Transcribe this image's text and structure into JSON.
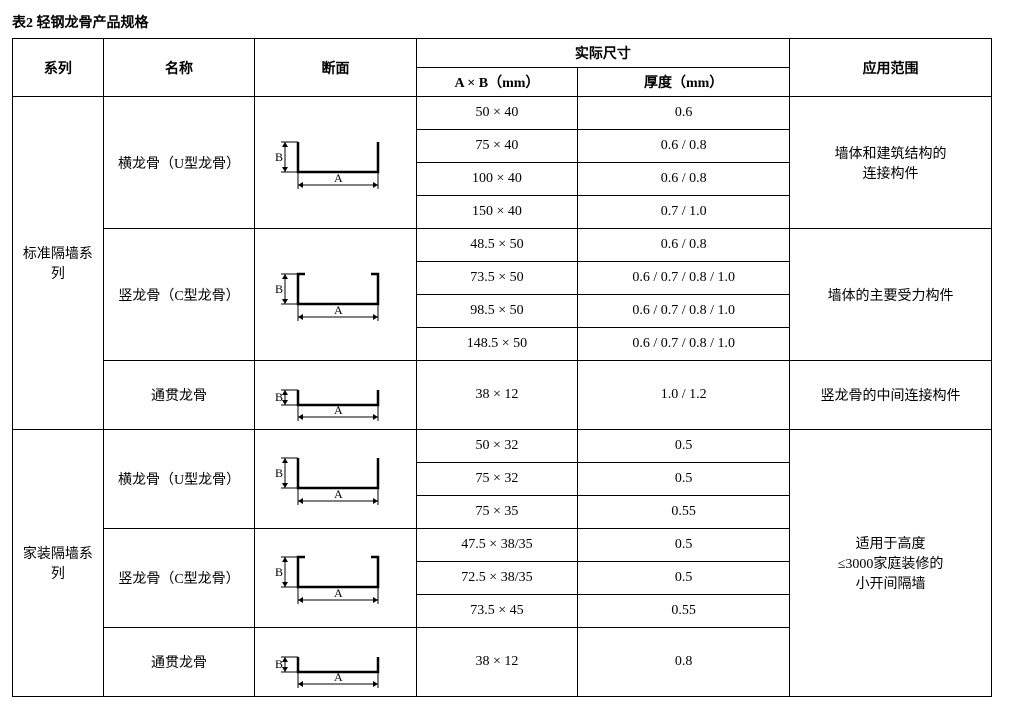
{
  "caption": "表2  轻钢龙骨产品规格",
  "columns": {
    "series": "系列",
    "name": "名称",
    "section": "断面",
    "dims": "实际尺寸",
    "axb": "A × B（mm）",
    "thickness": "厚度（mm）",
    "application": "应用范围"
  },
  "series": {
    "standard": "标准隔墙系列",
    "home": "家装隔墙系列"
  },
  "names": {
    "u": "横龙骨（U型龙骨）",
    "c": "竖龙骨（C型龙骨）",
    "through": "通贯龙骨"
  },
  "applications": {
    "std_u": "墙体和建筑结构的\n连接构件",
    "std_c": "墙体的主要受力构件",
    "std_through": "竖龙骨的中间连接构件",
    "home": "适用于高度\n≤3000家庭装修的\n小开间隔墙"
  },
  "rows": {
    "r1": {
      "axb": "50 × 40",
      "thk": "0.6"
    },
    "r2": {
      "axb": "75 × 40",
      "thk": "0.6  /  0.8"
    },
    "r3": {
      "axb": "100 × 40",
      "thk": "0.6  /  0.8"
    },
    "r4": {
      "axb": "150 × 40",
      "thk": "0.7  /  1.0"
    },
    "r5": {
      "axb": "48.5 × 50",
      "thk": "0.6  /  0.8"
    },
    "r6": {
      "axb": "73.5 × 50",
      "thk": "0.6  /  0.7  /  0.8  /  1.0"
    },
    "r7": {
      "axb": "98.5 × 50",
      "thk": "0.6  /  0.7  /  0.8  /  1.0"
    },
    "r8": {
      "axb": "148.5 × 50",
      "thk": "0.6  /  0.7  /  0.8  /  1.0"
    },
    "r9": {
      "axb": "38 × 12",
      "thk": "1.0  /  1.2"
    },
    "r10": {
      "axb": "50 × 32",
      "thk": "0.5"
    },
    "r11": {
      "axb": "75 × 32",
      "thk": "0.5"
    },
    "r12": {
      "axb": "75 × 35",
      "thk": "0.55"
    },
    "r13": {
      "axb": "47.5 × 38/35",
      "thk": "0.5"
    },
    "r14": {
      "axb": "72.5 × 38/35",
      "thk": "0.5"
    },
    "r15": {
      "axb": "73.5 × 45",
      "thk": "0.55"
    },
    "r16": {
      "axb": "38 × 12",
      "thk": "0.8"
    }
  },
  "style": {
    "font_family": "SimSun",
    "font_size_pt": 11,
    "border_color": "#000000",
    "background_color": "#ffffff",
    "section_stroke": "#000000",
    "section_stroke_width": 2,
    "dim_stroke_width": 1
  }
}
